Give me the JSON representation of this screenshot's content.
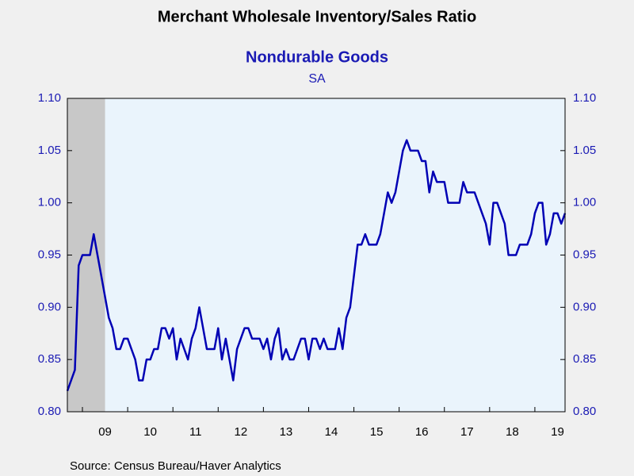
{
  "chart_data": {
    "type": "line",
    "title": "Merchant Wholesale Inventory/Sales Ratio",
    "subtitle": "Nondurable Goods",
    "note": "SA",
    "source": "Source:  Census Bureau/Haver Analytics",
    "x": [
      2008.667,
      2008.75,
      2008.833,
      2008.917,
      2009,
      2009.083,
      2009.167,
      2009.25,
      2009.333,
      2009.417,
      2009.5,
      2009.583,
      2009.667,
      2009.75,
      2009.833,
      2009.917,
      2010,
      2010.083,
      2010.167,
      2010.25,
      2010.333,
      2010.417,
      2010.5,
      2010.583,
      2010.667,
      2010.75,
      2010.833,
      2010.917,
      2011,
      2011.083,
      2011.167,
      2011.25,
      2011.333,
      2011.417,
      2011.5,
      2011.583,
      2011.667,
      2011.75,
      2011.833,
      2011.917,
      2012,
      2012.083,
      2012.167,
      2012.25,
      2012.333,
      2012.417,
      2012.5,
      2012.583,
      2012.667,
      2012.75,
      2012.833,
      2012.917,
      2013,
      2013.083,
      2013.167,
      2013.25,
      2013.333,
      2013.417,
      2013.5,
      2013.583,
      2013.667,
      2013.75,
      2013.833,
      2013.917,
      2014,
      2014.083,
      2014.167,
      2014.25,
      2014.333,
      2014.417,
      2014.5,
      2014.583,
      2014.667,
      2014.75,
      2014.833,
      2014.917,
      2015,
      2015.083,
      2015.167,
      2015.25,
      2015.333,
      2015.417,
      2015.5,
      2015.583,
      2015.667,
      2015.75,
      2015.833,
      2015.917,
      2016,
      2016.083,
      2016.167,
      2016.25,
      2016.333,
      2016.417,
      2016.5,
      2016.583,
      2016.667,
      2016.75,
      2016.833,
      2016.917,
      2017,
      2017.083,
      2017.167,
      2017.25,
      2017.333,
      2017.417,
      2017.5,
      2017.583,
      2017.667,
      2017.75,
      2017.833,
      2017.917,
      2018,
      2018.083,
      2018.167,
      2018.25,
      2018.333,
      2018.417,
      2018.5,
      2018.583,
      2018.667,
      2018.75,
      2018.833,
      2018.917,
      2019,
      2019.083,
      2019.167,
      2019.25,
      2019.333,
      2019.417,
      2019.5,
      2019.583,
      2019.667
    ],
    "series": [
      {
        "color": "#0000b4",
        "values": [
          0.82,
          0.83,
          0.84,
          0.94,
          0.95,
          0.95,
          0.95,
          0.97,
          0.95,
          0.93,
          0.91,
          0.89,
          0.88,
          0.86,
          0.86,
          0.87,
          0.87,
          0.86,
          0.85,
          0.83,
          0.83,
          0.85,
          0.85,
          0.86,
          0.86,
          0.88,
          0.88,
          0.87,
          0.88,
          0.85,
          0.87,
          0.86,
          0.85,
          0.87,
          0.88,
          0.9,
          0.88,
          0.86,
          0.86,
          0.86,
          0.88,
          0.85,
          0.87,
          0.85,
          0.83,
          0.86,
          0.87,
          0.88,
          0.88,
          0.87,
          0.87,
          0.87,
          0.86,
          0.87,
          0.85,
          0.87,
          0.88,
          0.85,
          0.86,
          0.85,
          0.85,
          0.86,
          0.87,
          0.87,
          0.85,
          0.87,
          0.87,
          0.86,
          0.87,
          0.86,
          0.86,
          0.86,
          0.88,
          0.86,
          0.89,
          0.9,
          0.93,
          0.96,
          0.96,
          0.97,
          0.96,
          0.96,
          0.96,
          0.97,
          0.99,
          1.01,
          1.0,
          1.01,
          1.03,
          1.05,
          1.06,
          1.05,
          1.05,
          1.05,
          1.04,
          1.04,
          1.01,
          1.03,
          1.02,
          1.02,
          1.02,
          1.0,
          1.0,
          1.0,
          1.0,
          1.02,
          1.01,
          1.01,
          1.01,
          1.0,
          0.99,
          0.98,
          0.96,
          1.0,
          1.0,
          0.99,
          0.98,
          0.95,
          0.95,
          0.95,
          0.96,
          0.96,
          0.96,
          0.97,
          0.99,
          1.0,
          1.0,
          0.96,
          0.97,
          0.99,
          0.99,
          0.98,
          0.99
        ]
      }
    ],
    "recession": [
      2007.917,
      2009.5
    ],
    "recession_color": "#c8c8c8",
    "xlim": [
      2008.667,
      2019.667
    ],
    "xticks": [
      {
        "value": 2009,
        "label": "09"
      },
      {
        "value": 2010,
        "label": "10"
      },
      {
        "value": 2011,
        "label": "11"
      },
      {
        "value": 2012,
        "label": "12"
      },
      {
        "value": 2013,
        "label": "13"
      },
      {
        "value": 2014,
        "label": "14"
      },
      {
        "value": 2015,
        "label": "15"
      },
      {
        "value": 2016,
        "label": "16"
      },
      {
        "value": 2017,
        "label": "17"
      },
      {
        "value": 2018,
        "label": "18"
      },
      {
        "value": 2019,
        "label": "19"
      }
    ],
    "ylim": [
      0.8,
      1.1
    ],
    "yticks": [
      {
        "value": 0.8,
        "label": "0.80"
      },
      {
        "value": 0.85,
        "label": "0.85"
      },
      {
        "value": 0.9,
        "label": "0.90"
      },
      {
        "value": 0.95,
        "label": "0.95"
      },
      {
        "value": 1.0,
        "label": "1.00"
      },
      {
        "value": 1.05,
        "label": "1.05"
      },
      {
        "value": 1.1,
        "label": "1.10"
      }
    ]
  }
}
